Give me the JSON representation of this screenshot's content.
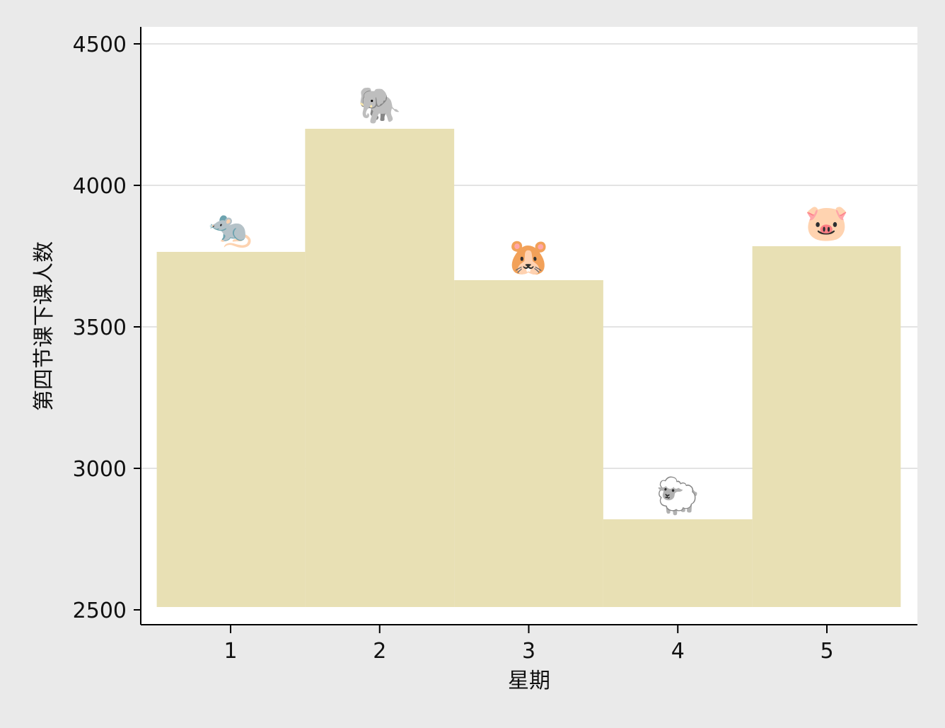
{
  "chart_data": {
    "type": "bar",
    "title": "",
    "xlabel": "星期",
    "ylabel": "第四节课下课人数",
    "categories": [
      "1",
      "2",
      "3",
      "4",
      "5"
    ],
    "values": [
      3765,
      4200,
      3665,
      2820,
      3785
    ],
    "bar_icons": [
      "🐀",
      "🐘",
      "🐹",
      "🐑",
      "🐷"
    ],
    "bar_icon_names": [
      "rat-icon",
      "elephant-icon",
      "hamster-icon",
      "sheep-icon",
      "pig-icon"
    ],
    "ylim": [
      2500,
      4560
    ],
    "yticks": [
      2500,
      3000,
      3500,
      4000,
      4500
    ],
    "grid": true,
    "legend": "none",
    "colors": {
      "bar": "#e8e0b4",
      "plot_background": "#ffffff",
      "outer_background": "#eaeaea",
      "grid": "#e3e3e3",
      "axis": "#000000"
    }
  }
}
